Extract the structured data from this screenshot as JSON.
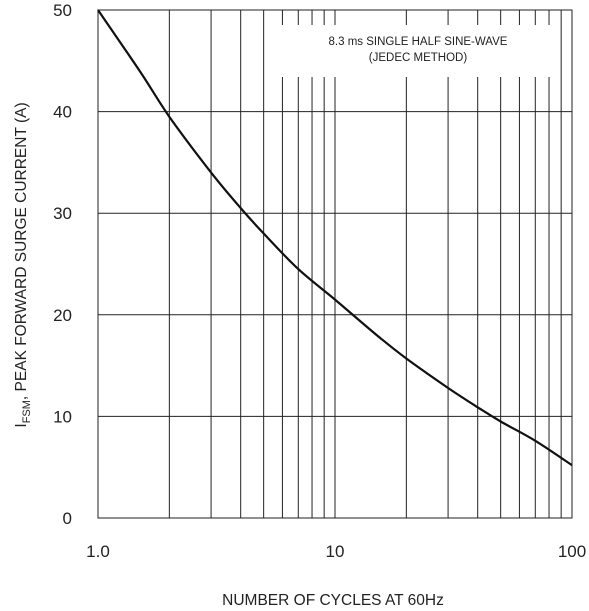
{
  "chart_data": {
    "type": "line",
    "title": "",
    "xlabel": "NUMBER OF CYCLES AT 60Hz",
    "ylabel": {
      "symbol": "I",
      "subscript": "FSM",
      "text": ", PEAK FORWARD SURGE CURRENT (A)"
    },
    "x_scale": "log",
    "xlim": [
      1,
      100
    ],
    "ylim": [
      0,
      50
    ],
    "x_ticks": [
      1,
      10,
      100
    ],
    "x_tick_labels": [
      "1.0",
      "10",
      "100"
    ],
    "y_ticks": [
      0,
      10,
      20,
      30,
      40,
      50
    ],
    "y_tick_labels": [
      "0",
      "10",
      "20",
      "30",
      "40",
      "50"
    ],
    "grid": true,
    "annotation": [
      "8.3 ms SINGLE HALF SINE-WAVE",
      "(JEDEC METHOD)"
    ],
    "series": [
      {
        "x": [
          1,
          1.5,
          2,
          3,
          4,
          5,
          7,
          10,
          15,
          20,
          30,
          40,
          50,
          70,
          100
        ],
        "values": [
          50,
          44,
          39.5,
          34,
          30.5,
          28,
          24.5,
          21.5,
          18,
          15.7,
          12.8,
          10.9,
          9.5,
          7.6,
          5.2
        ]
      }
    ],
    "line_color": "#111111",
    "grid_color": "#222222"
  }
}
